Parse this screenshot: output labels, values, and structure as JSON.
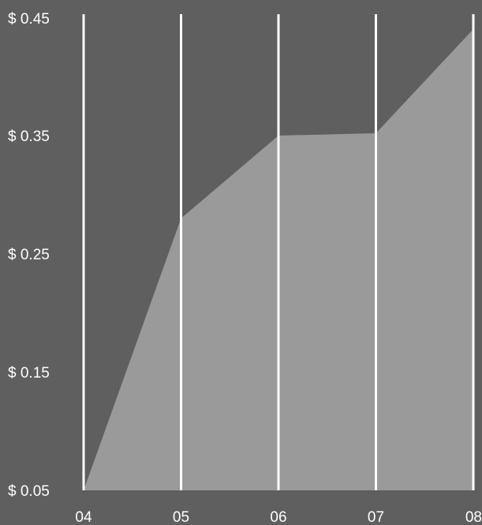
{
  "chart_data": {
    "type": "area",
    "title": "",
    "xlabel": "",
    "ylabel": "",
    "x": [
      "04",
      "05",
      "06",
      "07",
      "08"
    ],
    "series": [
      {
        "values": [
          0.05,
          0.28,
          0.35,
          0.352,
          0.44
        ]
      }
    ],
    "ylim": [
      0.05,
      0.45
    ],
    "y_ticks": [
      "$ 0.05",
      "$ 0.15",
      "$ 0.25",
      "$ 0.35",
      "$ 0.45"
    ],
    "y_tick_values": [
      0.05,
      0.15,
      0.25,
      0.35,
      0.45
    ],
    "grid": "vertical",
    "legend": "none",
    "colors": {
      "background": "#5f5f5f",
      "area_fill": "#9a9a9a",
      "grid": "#ffffff",
      "text": "#ffffff"
    }
  }
}
